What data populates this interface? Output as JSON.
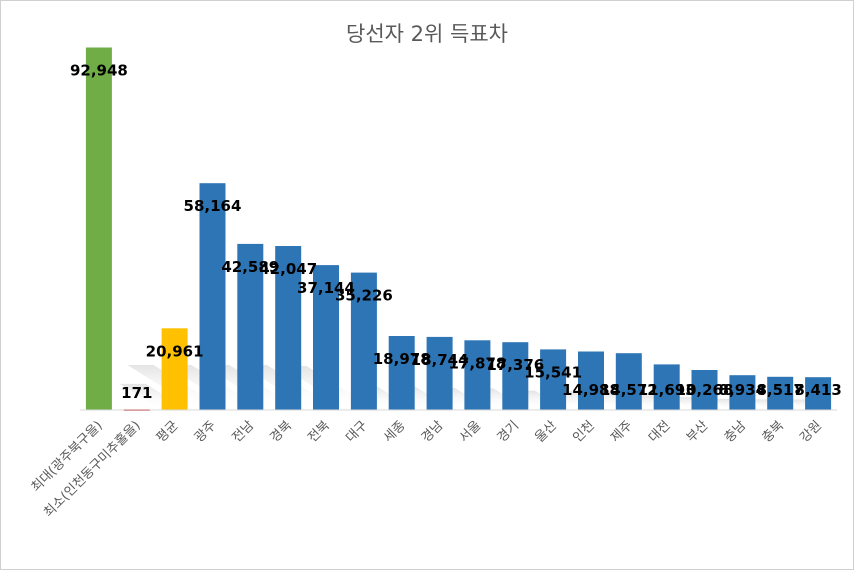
{
  "chart_data": {
    "type": "bar",
    "title": "당선자 2위 득표차",
    "xlabel": "",
    "ylabel": "",
    "ylim": [
      0,
      100000
    ],
    "grid": false,
    "legend": "none",
    "categories": [
      "최대(광주북구을)",
      "최소(인천동구미추홀을)",
      "평균",
      "광주",
      "전남",
      "경북",
      "전북",
      "대구",
      "세종",
      "경남",
      "서울",
      "경기",
      "울산",
      "인천",
      "제주",
      "대전",
      "부산",
      "충남",
      "충북",
      "강원"
    ],
    "values": [
      92948,
      171,
      20961,
      58164,
      42589,
      42047,
      37144,
      35226,
      18978,
      18744,
      17878,
      17376,
      15541,
      14988,
      14572,
      11693,
      10268,
      8934,
      8517,
      8413
    ],
    "value_labels": [
      "92,948",
      "171",
      "20,961",
      "58,164",
      "42,589",
      "42,047",
      "37,144",
      "35,226",
      "18,978",
      "18,744",
      "17,878",
      "17,376",
      "15,541",
      "14,988",
      "14,572",
      "11,693",
      "10,268",
      "8,934",
      "8,517",
      "8,413"
    ],
    "colors": {
      "max": "#70ad47",
      "min": "#c00000",
      "avg": "#ffc000",
      "default": "#2e75b6"
    }
  }
}
